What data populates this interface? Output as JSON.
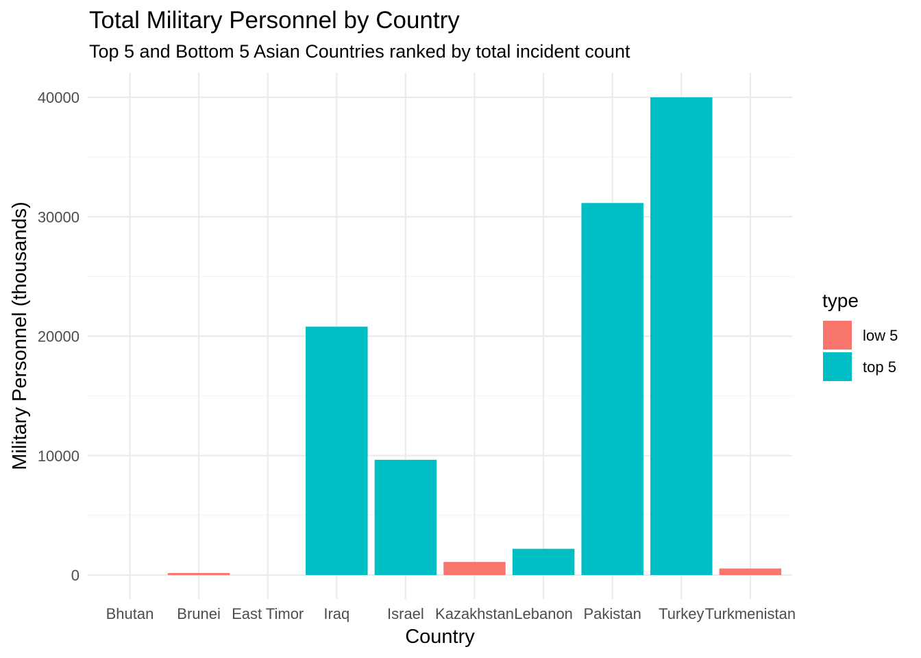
{
  "chart_data": {
    "type": "bar",
    "title": "Total Military Personnel by Country",
    "subtitle": "Top 5 and Bottom 5 Asian Countries ranked by total incident count",
    "xlabel": "Country",
    "ylabel": "Military Personnel (thousands)",
    "categories": [
      "Bhutan",
      "Brunei",
      "East Timor",
      "Iraq",
      "Israel",
      "Kazakhstan",
      "Lebanon",
      "Pakistan",
      "Turkey",
      "Turkmenistan"
    ],
    "values": [
      0,
      170,
      0,
      20800,
      9650,
      1100,
      2200,
      31150,
      40000,
      550
    ],
    "groups": [
      "low 5",
      "low 5",
      "low 5",
      "top 5",
      "top 5",
      "low 5",
      "top 5",
      "top 5",
      "top 5",
      "low 5"
    ],
    "ylim": [
      0,
      40000
    ],
    "yticks": [
      0,
      10000,
      20000,
      30000,
      40000
    ],
    "ytick_labels": [
      "0",
      "10000",
      "20000",
      "30000",
      "40000"
    ],
    "grid": true,
    "legend": {
      "title": "type",
      "position": "right",
      "entries": [
        {
          "label": "low 5",
          "color": "#F8766D"
        },
        {
          "label": "top 5",
          "color": "#00BFC4"
        }
      ]
    }
  }
}
